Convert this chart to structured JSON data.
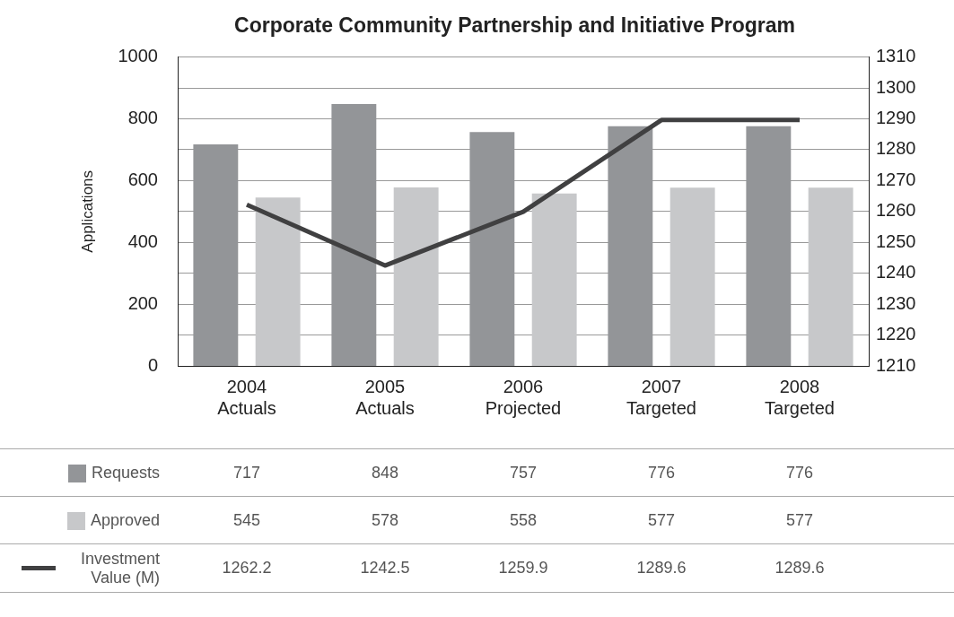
{
  "chart_data": {
    "type": "bar",
    "title": "Corporate Community Partnership and Initiative Program",
    "ylabel": "Applications",
    "categories": [
      "2004 Actuals",
      "2005 Actuals",
      "2006 Projected",
      "2007 Targeted",
      "2008 Targeted"
    ],
    "series": [
      {
        "name": "Requests",
        "color": "#939598",
        "values": [
          717,
          848,
          757,
          776,
          776
        ]
      },
      {
        "name": "Approved",
        "color": "#c7c8ca",
        "values": [
          545,
          578,
          558,
          577,
          577
        ]
      },
      {
        "name": "Investment Value (M)",
        "type": "line",
        "axis": "y2",
        "color": "#404041",
        "values": [
          1262.2,
          1242.5,
          1259.9,
          1289.6,
          1289.6
        ]
      }
    ],
    "ylim": [
      0,
      1000
    ],
    "yticks": [
      0,
      200,
      400,
      600,
      800,
      1000
    ],
    "y2lim": [
      1210,
      1310
    ],
    "y2ticks": [
      1210,
      1220,
      1230,
      1240,
      1250,
      1260,
      1270,
      1280,
      1290,
      1300,
      1310
    ],
    "grid": "y",
    "legend": "bottom",
    "data_labels": true,
    "marker": "none",
    "line_style": "solid"
  }
}
